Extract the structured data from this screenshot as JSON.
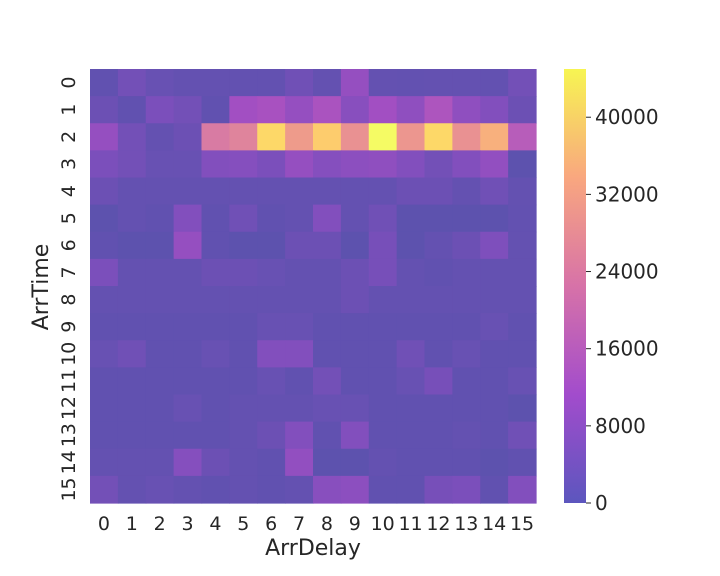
{
  "chart_data": {
    "type": "heatmap",
    "title": "",
    "xlabel": "ArrDelay",
    "ylabel": "ArrTime",
    "x_categories": [
      "0",
      "1",
      "2",
      "3",
      "4",
      "5",
      "6",
      "7",
      "8",
      "9",
      "10",
      "11",
      "12",
      "13",
      "14",
      "15"
    ],
    "y_categories": [
      "0",
      "1",
      "2",
      "3",
      "4",
      "5",
      "6",
      "7",
      "8",
      "9",
      "10",
      "11",
      "12",
      "13",
      "14",
      "15"
    ],
    "values": [
      [
        1500,
        4000,
        2500,
        2000,
        2000,
        1800,
        1800,
        3500,
        2000,
        9000,
        2000,
        1800,
        2000,
        2000,
        1800,
        4000
      ],
      [
        3000,
        1500,
        5000,
        4000,
        1500,
        11000,
        12000,
        9000,
        12500,
        7000,
        11000,
        8000,
        13000,
        8000,
        6000,
        3000
      ],
      [
        9000,
        4000,
        2000,
        3000,
        22000,
        24000,
        40000,
        29000,
        38000,
        27000,
        45000,
        28000,
        40000,
        27000,
        33000,
        15000
      ],
      [
        5000,
        4000,
        2500,
        2500,
        6000,
        6500,
        5000,
        9000,
        6500,
        7500,
        8000,
        6000,
        4000,
        6000,
        8500,
        1000
      ],
      [
        3000,
        2000,
        2000,
        2000,
        2000,
        2000,
        2000,
        2000,
        2000,
        2000,
        2000,
        3000,
        3000,
        2000,
        3500,
        2000
      ],
      [
        1000,
        2000,
        1500,
        6000,
        1500,
        3500,
        1500,
        2000,
        6000,
        2000,
        3500,
        1000,
        1000,
        1000,
        1000,
        1800
      ],
      [
        1500,
        1000,
        1000,
        9000,
        1500,
        1000,
        1000,
        3000,
        3000,
        1000,
        4500,
        1000,
        2000,
        3000,
        5500,
        2000
      ],
      [
        5000,
        2000,
        2000,
        2000,
        3000,
        3000,
        2500,
        2000,
        2000,
        3000,
        4500,
        2000,
        1500,
        2000,
        2000,
        2000
      ],
      [
        2000,
        2000,
        2000,
        2000,
        2000,
        2000,
        2000,
        2000,
        2000,
        3000,
        2000,
        2000,
        2000,
        2000,
        2000,
        2000
      ],
      [
        1500,
        1500,
        1500,
        1500,
        1500,
        1500,
        2500,
        2500,
        1500,
        1500,
        1500,
        1500,
        1500,
        1500,
        2500,
        1500
      ],
      [
        2500,
        3500,
        1500,
        1500,
        2500,
        1500,
        6000,
        6000,
        1500,
        1500,
        1500,
        3500,
        1500,
        2500,
        1500,
        1500
      ],
      [
        1500,
        1500,
        1500,
        1500,
        1500,
        1500,
        2500,
        1500,
        4000,
        1500,
        1500,
        2500,
        4500,
        1500,
        1500,
        2500
      ],
      [
        1500,
        1500,
        1500,
        2500,
        1500,
        2000,
        2000,
        2000,
        2500,
        2500,
        1500,
        1500,
        1500,
        1500,
        1500,
        1000
      ],
      [
        1500,
        1500,
        1500,
        1500,
        1500,
        2000,
        3000,
        6000,
        1500,
        6000,
        1500,
        1500,
        1500,
        2000,
        1500,
        3500
      ],
      [
        2000,
        2000,
        2000,
        6500,
        3000,
        2000,
        1500,
        8500,
        1000,
        1000,
        2000,
        1500,
        1500,
        1500,
        1000,
        1500
      ],
      [
        4000,
        2000,
        2500,
        2000,
        1500,
        2000,
        1500,
        2000,
        7000,
        7500,
        1500,
        1500,
        4500,
        5000,
        1500,
        6000
      ]
    ],
    "colorbar": {
      "min": 0,
      "max": 45000,
      "ticks": [
        "0",
        "8000",
        "16000",
        "24000",
        "32000",
        "40000"
      ]
    },
    "colormap": "plasma",
    "cell_alpha": 0.7,
    "grid": false
  }
}
